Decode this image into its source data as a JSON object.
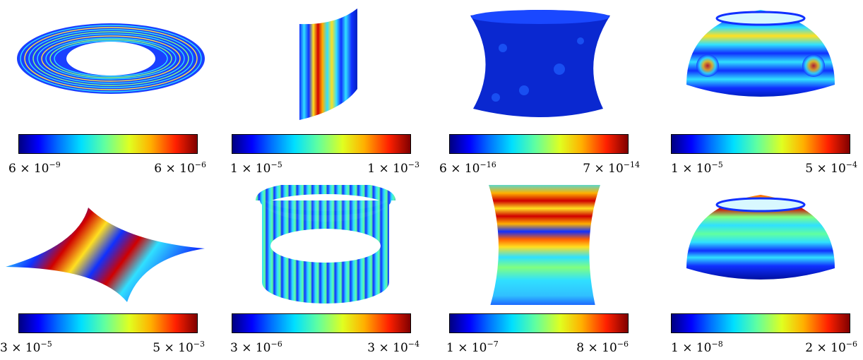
{
  "panels": [
    {
      "min_label": {
        "base": "6 × 10",
        "exp": "−9"
      },
      "max_label": {
        "base": "6 × 10",
        "exp": "−6"
      }
    },
    {
      "min_label": {
        "base": "1 × 10",
        "exp": "−5"
      },
      "max_label": {
        "base": "1 × 10",
        "exp": "−3"
      }
    },
    {
      "min_label": {
        "base": "6 × 10",
        "exp": "−16"
      },
      "max_label": {
        "base": "7 × 10",
        "exp": "−14"
      }
    },
    {
      "min_label": {
        "base": "1 × 10",
        "exp": "−5"
      },
      "max_label": {
        "base": "5 × 10",
        "exp": "−4"
      }
    },
    {
      "min_label": {
        "base": "3 × 10",
        "exp": "−5"
      },
      "max_label": {
        "base": "5 × 10",
        "exp": "−3"
      }
    },
    {
      "min_label": {
        "base": "3 × 10",
        "exp": "−6"
      },
      "max_label": {
        "base": "3 × 10",
        "exp": "−4"
      }
    },
    {
      "min_label": {
        "base": "1 × 10",
        "exp": "−7"
      },
      "max_label": {
        "base": "8 × 10",
        "exp": "−6"
      }
    },
    {
      "min_label": {
        "base": "1 × 10",
        "exp": "−8"
      },
      "max_label": {
        "base": "2 × 10",
        "exp": "−6"
      }
    }
  ],
  "colormap": "jet"
}
